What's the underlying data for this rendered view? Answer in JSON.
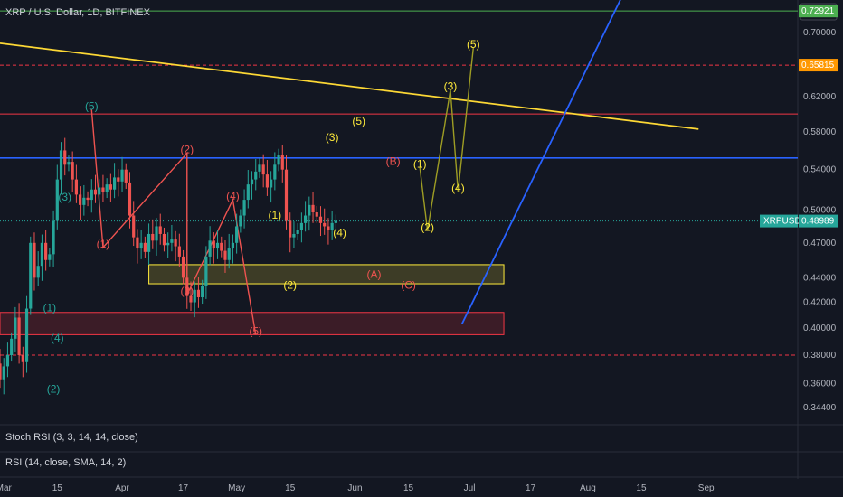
{
  "header": {
    "title": "XRP / U.S. Dollar, 1D, BITFINEX",
    "currency": "USD"
  },
  "indicators": [
    "Stoch RSI (3, 3, 14, 14, close)",
    "RSI (14, close, SMA, 14, 2)"
  ],
  "colors": {
    "background": "#131722",
    "up": "#26a69a",
    "down": "#ef5350",
    "label_green": "#26a69a",
    "label_red": "#ef5350",
    "label_yellow": "#ffeb3b",
    "trend_yellow": "#fdd835",
    "trend_blue": "#2962ff",
    "level_green": "#4caf50",
    "level_red": "#f23645",
    "projection": "#9e9d24"
  },
  "chart_data": {
    "type": "candlestick",
    "symbol": "XRPUSD",
    "y_scale": "log",
    "ylim": [
      0.34,
      0.76
    ],
    "y_ticks": [
      0.344,
      0.36,
      0.38,
      0.4,
      0.42,
      0.44,
      0.47,
      0.5,
      0.54,
      0.58,
      0.62,
      0.7,
      0.73
    ],
    "y_tick_labels": [
      "0.34400",
      "0.36000",
      "0.38000",
      "0.40000",
      "0.42000",
      "0.44000",
      "0.47000",
      "0.50000",
      "0.54000",
      "0.58000",
      "0.62000",
      "0.70000",
      "0.73000"
    ],
    "x_labels": [
      {
        "label": "Mar",
        "date": "2022-03-01"
      },
      {
        "label": "15",
        "date": "2022-03-15"
      },
      {
        "label": "Apr",
        "date": "2022-04-01"
      },
      {
        "label": "17",
        "date": "2022-04-17"
      },
      {
        "label": "May",
        "date": "2022-05-01"
      },
      {
        "label": "15",
        "date": "2022-05-15"
      },
      {
        "label": "Jun",
        "date": "2022-06-01"
      },
      {
        "label": "15",
        "date": "2022-06-15"
      },
      {
        "label": "Jul",
        "date": "2022-07-01"
      },
      {
        "label": "17",
        "date": "2022-07-17"
      },
      {
        "label": "Aug",
        "date": "2022-08-01"
      },
      {
        "label": "15",
        "date": "2022-08-15"
      },
      {
        "label": "Sep",
        "date": "2022-09-01"
      }
    ],
    "price_badges": [
      {
        "label": "0.72921",
        "value": 0.72921,
        "color": "#4caf50"
      },
      {
        "label": "0.65815",
        "value": 0.65815,
        "color": "#ff9800"
      },
      {
        "label": "0.48989",
        "value": 0.48989,
        "color": "#26a69a",
        "prefix": "XRPUSD"
      }
    ],
    "closes": [
      0.381,
      0.383,
      0.379,
      0.372,
      0.376,
      0.385,
      0.392,
      0.378,
      0.371,
      0.383,
      0.387,
      0.374,
      0.363,
      0.372,
      0.38,
      0.392,
      0.408,
      0.38,
      0.375,
      0.415,
      0.47,
      0.44,
      0.45,
      0.47,
      0.455,
      0.46,
      0.49,
      0.53,
      0.56,
      0.545,
      0.548,
      0.53,
      0.515,
      0.505,
      0.512,
      0.51,
      0.52,
      0.515,
      0.522,
      0.518,
      0.525,
      0.52,
      0.532,
      0.528,
      0.54,
      0.527,
      0.495,
      0.475,
      0.465,
      0.47,
      0.462,
      0.478,
      0.472,
      0.485,
      0.478,
      0.468,
      0.47,
      0.473,
      0.467,
      0.458,
      0.44,
      0.425,
      0.42,
      0.43,
      0.424,
      0.433,
      0.458,
      0.472,
      0.465,
      0.47,
      0.463,
      0.455,
      0.465,
      0.47,
      0.485,
      0.495,
      0.51,
      0.525,
      0.53,
      0.538,
      0.545,
      0.535,
      0.522,
      0.53,
      0.545,
      0.555,
      0.54,
      0.49,
      0.475,
      0.478,
      0.482,
      0.488,
      0.495,
      0.505,
      0.498,
      0.494,
      0.488,
      0.485,
      0.482,
      0.488,
      0.49
    ],
    "levels": [
      {
        "value": 0.72921,
        "color": "#4caf50",
        "style": "solid"
      },
      {
        "value": 0.65815,
        "color": "#f23645",
        "style": "dashed"
      },
      {
        "value": 0.6,
        "color": "#f23645",
        "style": "solid"
      },
      {
        "value": 0.552,
        "color": "#2962ff",
        "style": "solid"
      },
      {
        "value": 0.38,
        "color": "#f23645",
        "style": "dashed"
      }
    ],
    "zones": [
      {
        "from": "2022-04-08",
        "to": "2022-07-10",
        "low": 0.435,
        "high": 0.451,
        "color": "#ffeb3b"
      },
      {
        "from": "2022-02-15",
        "to": "2022-07-10",
        "low": 0.395,
        "high": 0.412,
        "color": "#f23645"
      }
    ],
    "trendlines": [
      {
        "from": [
          "2022-02-28",
          0.686
        ],
        "to": [
          "2022-08-30",
          0.583
        ],
        "color": "#fdd835"
      },
      {
        "from": [
          "2022-06-29",
          0.403
        ],
        "to": [
          "2022-08-10",
          0.75
        ],
        "color": "#2962ff"
      }
    ],
    "wave_labels": [
      {
        "text": "(1)",
        "date": "2022-03-13",
        "price": 0.413,
        "color": "#26a69a"
      },
      {
        "text": "(2)",
        "date": "2022-03-14",
        "price": 0.354,
        "color": "#26a69a"
      },
      {
        "text": "(3)",
        "date": "2022-03-17",
        "price": 0.509,
        "color": "#26a69a"
      },
      {
        "text": "(4)",
        "date": "2022-03-15",
        "price": 0.39,
        "color": "#26a69a"
      },
      {
        "text": "(5)",
        "date": "2022-03-24",
        "price": 0.605,
        "color": "#26a69a"
      },
      {
        "text": "(1)",
        "date": "2022-03-27",
        "price": 0.466,
        "color": "#ef5350"
      },
      {
        "text": "(2)",
        "date": "2022-04-18",
        "price": 0.557,
        "color": "#ef5350"
      },
      {
        "text": "(3)",
        "date": "2022-04-18",
        "price": 0.426,
        "color": "#ef5350"
      },
      {
        "text": "(4)",
        "date": "2022-04-30",
        "price": 0.51,
        "color": "#ef5350"
      },
      {
        "text": "(5)",
        "date": "2022-05-06",
        "price": 0.395,
        "color": "#ef5350"
      },
      {
        "text": "(1)",
        "date": "2022-05-11",
        "price": 0.492,
        "color": "#ffeb3b"
      },
      {
        "text": "(2)",
        "date": "2022-05-15",
        "price": 0.431,
        "color": "#ffeb3b"
      },
      {
        "text": "(3)",
        "date": "2022-05-26",
        "price": 0.57,
        "color": "#ffeb3b"
      },
      {
        "text": "(4)",
        "date": "2022-05-28",
        "price": 0.476,
        "color": "#ffeb3b"
      },
      {
        "text": "(5)",
        "date": "2022-06-02",
        "price": 0.588,
        "color": "#ffeb3b"
      },
      {
        "text": "(A)",
        "date": "2022-06-06",
        "price": 0.44,
        "color": "#ef5350"
      },
      {
        "text": "(B)",
        "date": "2022-06-11",
        "price": 0.545,
        "color": "#ef5350"
      },
      {
        "text": "(C)",
        "date": "2022-06-15",
        "price": 0.431,
        "color": "#ef5350"
      },
      {
        "text": "(1)",
        "date": "2022-06-18",
        "price": 0.542,
        "color": "#ffeb3b"
      },
      {
        "text": "(2)",
        "date": "2022-06-20",
        "price": 0.481,
        "color": "#ffeb3b"
      },
      {
        "text": "(3)",
        "date": "2022-06-26",
        "price": 0.628,
        "color": "#ffeb3b"
      },
      {
        "text": "(4)",
        "date": "2022-06-28",
        "price": 0.518,
        "color": "#ffeb3b"
      },
      {
        "text": "(5)",
        "date": "2022-07-02",
        "price": 0.68,
        "color": "#ffeb3b"
      }
    ]
  }
}
